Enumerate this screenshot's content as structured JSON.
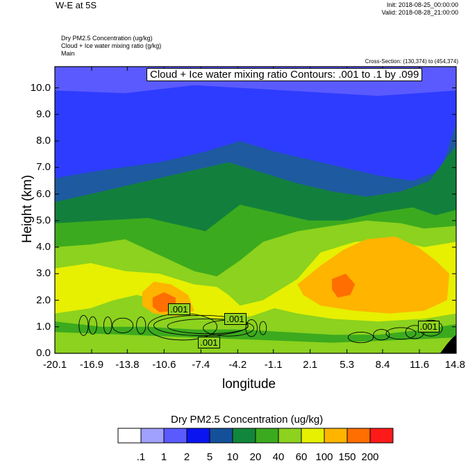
{
  "header": {
    "title": "W-E at 5S",
    "init": "Init: 2018-08-25_00:00:00",
    "valid": "Valid: 2018-08-28_21:00:00",
    "fields": [
      "Dry PM2.5 Concentration   (ug/kg)",
      "Cloud + Ice water mixing ratio   (g/kg)",
      "Main"
    ],
    "cross_section": "Cross-Section: (130,374) to (454,374)"
  },
  "chart_data": {
    "type": "heatmap",
    "title": "Cloud + Ice water mixing ratio Contours: .001 to .1 by .099",
    "xlabel": "longitude",
    "ylabel": "Height (km)",
    "x_ticks": [
      "-20.1",
      "-16.9",
      "-13.8",
      "-10.6",
      "-7.4",
      "-4.2",
      "-1.1",
      "2.1",
      "5.3",
      "8.4",
      "11.6",
      "14.8"
    ],
    "y_ticks": [
      "0.0",
      "1.0",
      "2.0",
      "3.0",
      "4.0",
      "5.0",
      "6.0",
      "7.0",
      "8.0",
      "9.0",
      "10.0"
    ],
    "xlim": [
      -20.1,
      14.8
    ],
    "ylim": [
      0.0,
      10.8
    ],
    "contour_labels": [
      {
        "text": ".001",
        "x": -9.3,
        "y": 1.65
      },
      {
        "text": ".001",
        "x": -4.4,
        "y": 1.3
      },
      {
        "text": ".001",
        "x": -6.7,
        "y": 0.4
      },
      {
        "text": ".001",
        "x": 12.4,
        "y": 1.0
      }
    ],
    "colorbar": {
      "title": "Dry PM2.5 Concentration  (ug/kg)",
      "levels": [
        ".1",
        "1",
        "2",
        "5",
        "10",
        "20",
        "40",
        "60",
        "100",
        "150",
        "200"
      ],
      "colors": [
        "#ffffff",
        "#a0a0ff",
        "#5a5aff",
        "#0a14f0",
        "#14509a",
        "#10873a",
        "#3caa1e",
        "#8cd21e",
        "#e6f000",
        "#ffb400",
        "#ff6e00",
        "#ff1a1a"
      ]
    },
    "field_colors": {
      "upper": "#2e3cff",
      "upper_light": "#5a5aff",
      "navy": "#1e5aa0",
      "dark_green": "#12803c",
      "green": "#3caa1e",
      "light_green": "#8cd21e",
      "yellow": "#e6f000",
      "orange": "#ffb400",
      "dark_orange": "#ff6e00"
    }
  }
}
